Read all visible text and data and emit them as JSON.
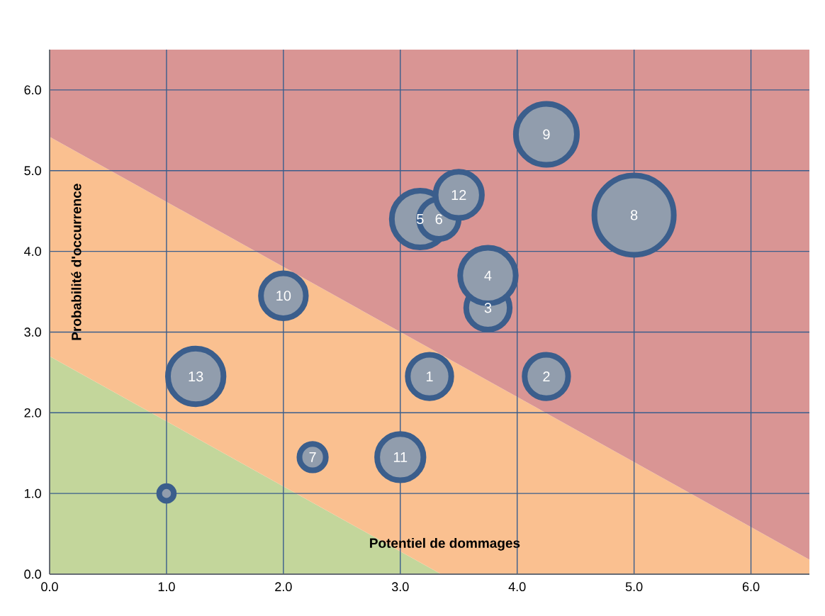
{
  "chart_data": {
    "type": "bubble",
    "xlabel": "Potentiel de dommages",
    "ylabel": "Probabilité d'occurrence",
    "xlim": [
      0,
      6.5
    ],
    "ylim": [
      0,
      6.5
    ],
    "xticks": [
      {
        "value": 0,
        "label": "0.0"
      },
      {
        "value": 1,
        "label": "1.0"
      },
      {
        "value": 2,
        "label": "2.0"
      },
      {
        "value": 3,
        "label": "3.0"
      },
      {
        "value": 4,
        "label": "4.0"
      },
      {
        "value": 5,
        "label": "5.0"
      },
      {
        "value": 6,
        "label": "6.0"
      }
    ],
    "yticks": [
      {
        "value": 0,
        "label": "0.0"
      },
      {
        "value": 1,
        "label": "1.0"
      },
      {
        "value": 2,
        "label": "2.0"
      },
      {
        "value": 3,
        "label": "3.0"
      },
      {
        "value": 4,
        "label": "4.0"
      },
      {
        "value": 5,
        "label": "5.0"
      },
      {
        "value": 6,
        "label": "6.0"
      }
    ],
    "grid": true,
    "stacked": true,
    "series": [
      {
        "type": "area",
        "color": "#c3d69b",
        "x": [
          0,
          3.35,
          6.5
        ],
        "values": [
          2.7,
          0,
          0
        ]
      },
      {
        "type": "area",
        "color": "#fac090",
        "x": [
          0,
          3.35,
          6.5
        ],
        "values": [
          2.72,
          2.72,
          0.18
        ]
      },
      {
        "type": "area",
        "color": "#d99594",
        "x": [
          0,
          3.35,
          6.5
        ],
        "values": [
          1.08,
          3.78,
          6.32
        ]
      },
      {
        "color": "#3b5e8c",
        "x": [
          3.25,
          4.25,
          3.75,
          3.75,
          3.17,
          3.33,
          2.25,
          5.0,
          4.25,
          2.0,
          3.0,
          3.5,
          1.25,
          1.0
        ],
        "values": [
          2.45,
          2.45,
          3.3,
          3.7,
          4.4,
          4.4,
          1.45,
          4.45,
          5.45,
          3.45,
          1.45,
          4.7,
          2.45,
          1.0
        ],
        "sizes": [
          0.3,
          0.3,
          0.3,
          0.49,
          0.51,
          0.25,
          0.11,
          1,
          0.59,
          0.32,
          0.34,
          0.34,
          0.49,
          0.034
        ]
      }
    ],
    "annotations": [
      {
        "text": "1",
        "x": 3.25,
        "y": 2.45
      },
      {
        "text": "2",
        "x": 4.25,
        "y": 2.45
      },
      {
        "text": "3",
        "x": 3.75,
        "y": 3.3
      },
      {
        "text": "4",
        "x": 3.75,
        "y": 3.7
      },
      {
        "text": "5",
        "x": 3.17,
        "y": 4.4
      },
      {
        "text": "6",
        "x": 3.33,
        "y": 4.4
      },
      {
        "text": "7",
        "x": 2.25,
        "y": 1.45
      },
      {
        "text": "8",
        "x": 5.0,
        "y": 4.45
      },
      {
        "text": "9",
        "x": 4.25,
        "y": 5.45
      },
      {
        "text": "10",
        "x": 2.0,
        "y": 3.45
      },
      {
        "text": "11",
        "x": 3.0,
        "y": 1.45
      },
      {
        "text": "12",
        "x": 3.5,
        "y": 4.7
      },
      {
        "text": "13",
        "x": 1.25,
        "y": 2.45
      }
    ]
  }
}
